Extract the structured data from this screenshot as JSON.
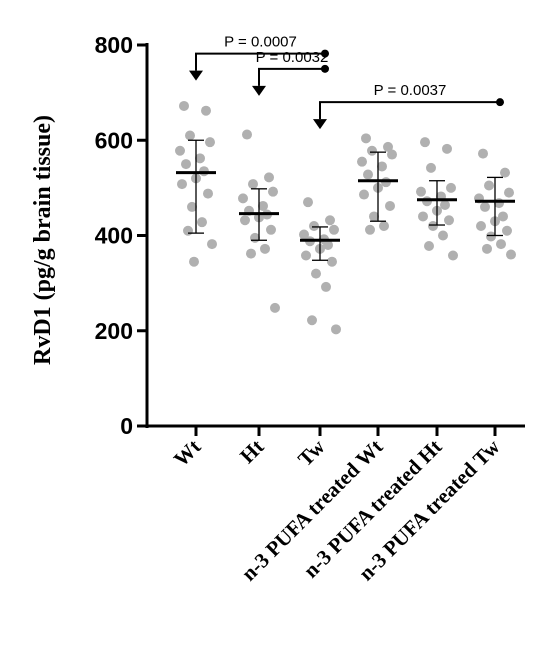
{
  "chart_data": {
    "type": "scatter",
    "ylabel": "RvD1 (pg/g brain tissue)",
    "ylim": [
      0,
      800
    ],
    "yticks": [
      0,
      200,
      400,
      600,
      800
    ],
    "categories": [
      "Wt",
      "Ht",
      "Tw",
      "n-3 PUFA treated Wt",
      "n-3 PUFA treated Ht",
      "n-3 PUFA treated Tw"
    ],
    "point_color": "#b0b0b0",
    "points": [
      [
        672,
        662,
        610,
        596,
        578,
        562,
        550,
        535,
        520,
        508,
        488,
        460,
        428,
        410,
        382,
        345
      ],
      [
        612,
        522,
        508,
        492,
        478,
        462,
        452,
        444,
        438,
        432,
        412,
        395,
        372,
        362,
        248
      ],
      [
        470,
        432,
        420,
        412,
        402,
        392,
        388,
        380,
        372,
        358,
        345,
        320,
        292,
        222,
        203
      ],
      [
        604,
        586,
        578,
        570,
        555,
        545,
        528,
        512,
        500,
        486,
        462,
        440,
        420,
        412
      ],
      [
        596,
        582,
        542,
        500,
        492,
        482,
        472,
        464,
        452,
        440,
        432,
        420,
        400,
        378,
        358
      ],
      [
        572,
        532,
        505,
        490,
        478,
        468,
        460,
        440,
        430,
        420,
        410,
        398,
        382,
        372,
        360
      ]
    ],
    "means": [
      532,
      446,
      390,
      515,
      475,
      472
    ],
    "error_low": [
      405,
      390,
      348,
      430,
      422,
      400
    ],
    "error_high": [
      600,
      498,
      418,
      575,
      515,
      522
    ],
    "comparisons": [
      {
        "from": 0,
        "to": 2,
        "y": 782,
        "label": "P = 0.0007"
      },
      {
        "from": 1,
        "to": 2,
        "y": 750,
        "label": "P = 0.0032"
      },
      {
        "from": 2,
        "to": 5,
        "y": 680,
        "label": "P = 0.0037"
      }
    ]
  }
}
